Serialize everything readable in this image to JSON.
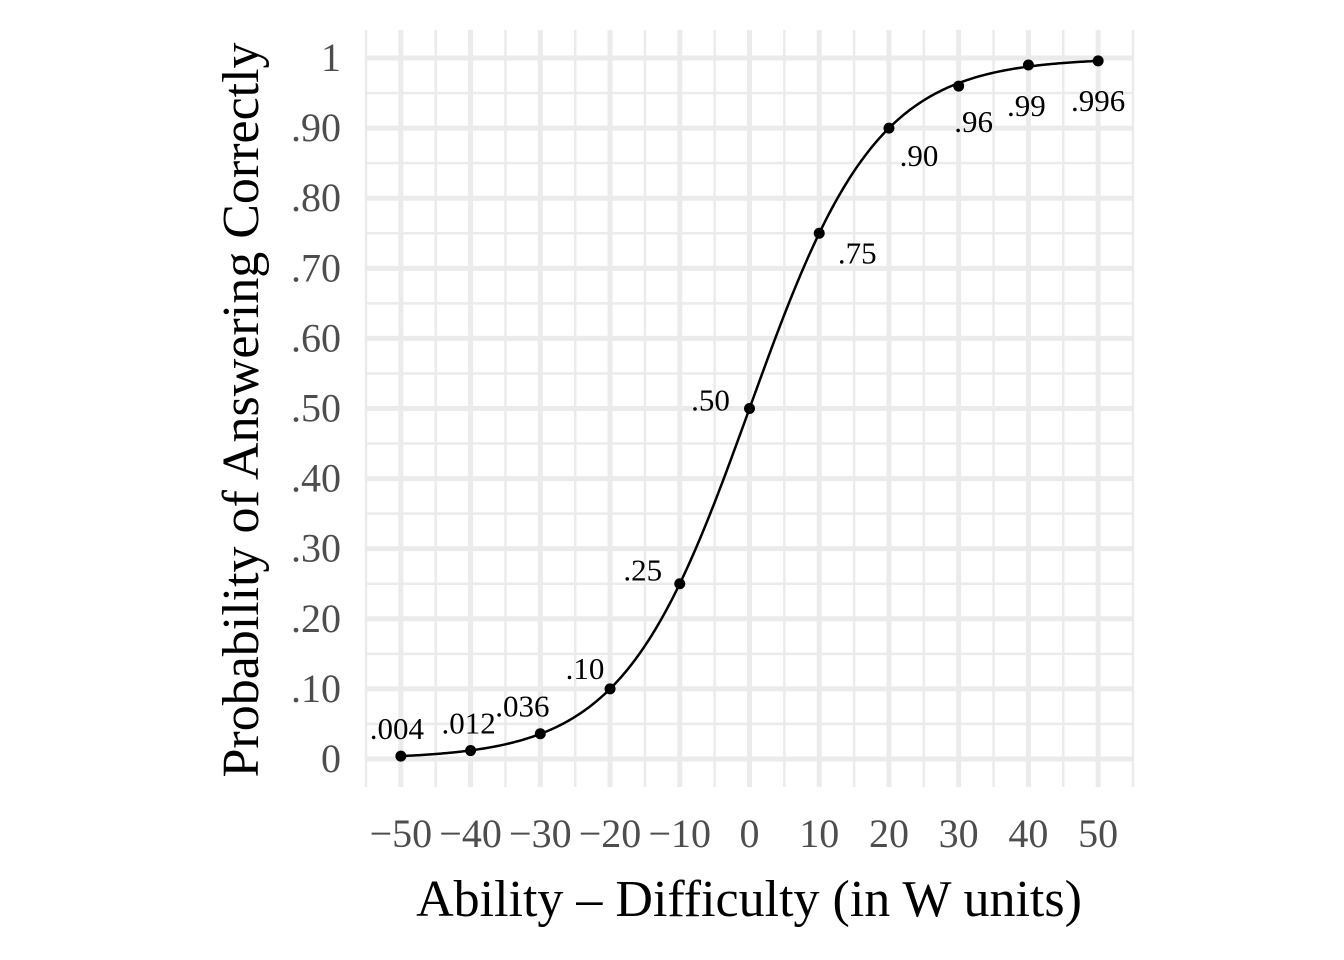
{
  "chart_data": {
    "type": "line",
    "title": "",
    "xlabel": "Ability – Difficulty (in W units)",
    "ylabel": "Probability of Answering Correctly",
    "xlim": [
      -55,
      55
    ],
    "ylim": [
      -0.04,
      1.04
    ],
    "grid": true,
    "x_ticks": [
      -50,
      -40,
      -30,
      -20,
      -10,
      0,
      10,
      20,
      30,
      40,
      50
    ],
    "x_tick_labels": [
      "−50",
      "−40",
      "−30",
      "−20",
      "−10",
      "0",
      "10",
      "20",
      "30",
      "40",
      "50"
    ],
    "y_ticks": [
      0,
      0.1,
      0.2,
      0.3,
      0.4,
      0.5,
      0.6,
      0.7,
      0.8,
      0.9,
      1
    ],
    "y_tick_labels": [
      "0",
      ".10",
      ".20",
      ".30",
      ".40",
      ".50",
      ".60",
      ".70",
      ".80",
      ".90",
      "1"
    ],
    "curve": {
      "form": "logistic",
      "x_range": [
        -50,
        50
      ]
    },
    "series": [
      {
        "x": [
          -50,
          -40,
          -30,
          -20,
          -10,
          0,
          10,
          20,
          30,
          40,
          50
        ],
        "y": [
          0.004,
          0.012,
          0.036,
          0.1,
          0.25,
          0.5,
          0.75,
          0.9,
          0.96,
          0.99,
          0.996
        ],
        "labels": [
          ".004",
          ".012",
          ".036",
          ".10",
          ".25",
          ".50",
          ".75",
          ".90",
          ".96",
          ".99",
          ".996"
        ]
      }
    ],
    "colors": {
      "background": "#ffffff",
      "grid": "#ebebeb",
      "line": "#000000",
      "points": "#000000",
      "tick_text": "#4d4d4d",
      "axis_title": "#000000"
    }
  }
}
